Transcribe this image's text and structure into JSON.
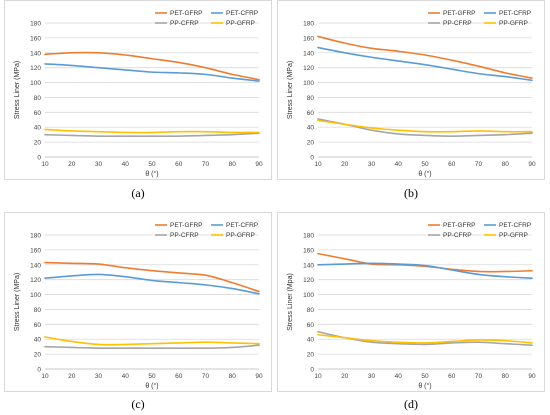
{
  "chart_data": [
    {
      "type": "line",
      "panel_label": "(a)",
      "xlabel": "θ (°)",
      "ylabel": "Stress Liner (MPa)",
      "xlim": [
        10,
        90
      ],
      "ylim": [
        0,
        180
      ],
      "x_ticks": [
        "10",
        "20",
        "30",
        "40",
        "50",
        "60",
        "70",
        "80",
        "90"
      ],
      "y_ticks": [
        "0",
        "20",
        "40",
        "60",
        "80",
        "100",
        "120",
        "140",
        "160",
        "180"
      ],
      "grid": true,
      "legend": "top-right",
      "x": [
        10,
        20,
        30,
        40,
        50,
        60,
        70,
        80,
        90
      ],
      "series": [
        {
          "name": "PET-GFRP",
          "color": "#ED7D31",
          "values": [
            138,
            140,
            140,
            137,
            132,
            127,
            120,
            111,
            104
          ]
        },
        {
          "name": "PET-CFRP",
          "color": "#5B9BD5",
          "values": [
            125,
            123,
            120,
            117,
            114,
            113,
            111,
            106,
            102
          ]
        },
        {
          "name": "PP-CFRP",
          "color": "#A5A5A5",
          "values": [
            30,
            29,
            28,
            28,
            28,
            28,
            29,
            30,
            32
          ]
        },
        {
          "name": "PP-GFRP",
          "color": "#FFC000",
          "values": [
            37,
            35,
            34,
            33,
            33,
            34,
            34,
            33,
            33
          ]
        }
      ]
    },
    {
      "type": "line",
      "panel_label": "(b)",
      "xlabel": "θ (°)",
      "ylabel": "Stress Liner (MPa)",
      "xlim": [
        10,
        90
      ],
      "ylim": [
        0,
        180
      ],
      "x_ticks": [
        "10",
        "20",
        "30",
        "40",
        "50",
        "60",
        "70",
        "80",
        "90"
      ],
      "y_ticks": [
        "0",
        "20",
        "40",
        "60",
        "80",
        "100",
        "120",
        "140",
        "160",
        "180"
      ],
      "grid": true,
      "legend": "top-right",
      "x": [
        10,
        20,
        30,
        40,
        50,
        60,
        70,
        80,
        90
      ],
      "series": [
        {
          "name": "PET-GFRP",
          "color": "#ED7D31",
          "values": [
            162,
            153,
            146,
            142,
            137,
            130,
            122,
            113,
            106
          ]
        },
        {
          "name": "PET-CFRP",
          "color": "#5B9BD5",
          "values": [
            147,
            140,
            134,
            129,
            124,
            118,
            112,
            108,
            103
          ]
        },
        {
          "name": "PP-CFRP",
          "color": "#A5A5A5",
          "values": [
            51,
            44,
            36,
            31,
            29,
            28,
            29,
            30,
            32
          ]
        },
        {
          "name": "PP-GFRP",
          "color": "#FFC000",
          "values": [
            49,
            44,
            39,
            36,
            34,
            34,
            35,
            34,
            34
          ]
        }
      ]
    },
    {
      "type": "line",
      "panel_label": "(c)",
      "xlabel": "θ (°)",
      "ylabel": "Stress Liner (MPa)",
      "xlim": [
        10,
        90
      ],
      "ylim": [
        0,
        180
      ],
      "x_ticks": [
        "10",
        "20",
        "30",
        "40",
        "50",
        "60",
        "70",
        "80",
        "90"
      ],
      "y_ticks": [
        "0",
        "20",
        "40",
        "60",
        "80",
        "100",
        "120",
        "140",
        "160",
        "180"
      ],
      "grid": true,
      "legend": "top-right",
      "x": [
        10,
        20,
        30,
        40,
        50,
        60,
        70,
        80,
        90
      ],
      "series": [
        {
          "name": "PET-GFRP",
          "color": "#ED7D31",
          "values": [
            143,
            142,
            141,
            136,
            132,
            129,
            126,
            116,
            104
          ]
        },
        {
          "name": "PET-CFRP",
          "color": "#5B9BD5",
          "values": [
            122,
            125,
            127,
            124,
            119,
            116,
            113,
            108,
            101
          ]
        },
        {
          "name": "PP-CFRP",
          "color": "#A5A5A5",
          "values": [
            30,
            29,
            28,
            28,
            28,
            28,
            28,
            29,
            32
          ]
        },
        {
          "name": "PP-GFRP",
          "color": "#FFC000",
          "values": [
            43,
            37,
            33,
            33,
            34,
            35,
            36,
            35,
            34
          ]
        }
      ]
    },
    {
      "type": "line",
      "panel_label": "(d)",
      "xlabel": "θ (°)",
      "ylabel": "Stress Liner (Mpa)",
      "xlim": [
        10,
        90
      ],
      "ylim": [
        0,
        180
      ],
      "x_ticks": [
        "10",
        "20",
        "30",
        "40",
        "50",
        "60",
        "70",
        "80",
        "90"
      ],
      "y_ticks": [
        "0",
        "20",
        "40",
        "60",
        "80",
        "100",
        "120",
        "140",
        "160",
        "180"
      ],
      "grid": true,
      "legend": "top-right",
      "x": [
        10,
        20,
        30,
        40,
        50,
        60,
        70,
        80,
        90
      ],
      "series": [
        {
          "name": "PET-GFRP",
          "color": "#ED7D31",
          "values": [
            155,
            148,
            141,
            140,
            138,
            134,
            131,
            131,
            132
          ]
        },
        {
          "name": "PET-CFRP",
          "color": "#5B9BD5",
          "values": [
            140,
            141,
            142,
            141,
            139,
            133,
            127,
            124,
            122
          ]
        },
        {
          "name": "PP-CFRP",
          "color": "#A5A5A5",
          "values": [
            50,
            42,
            36,
            34,
            33,
            35,
            36,
            34,
            32
          ]
        },
        {
          "name": "PP-GFRP",
          "color": "#FFC000",
          "values": [
            46,
            42,
            38,
            36,
            35,
            37,
            39,
            38,
            35
          ]
        }
      ]
    }
  ]
}
